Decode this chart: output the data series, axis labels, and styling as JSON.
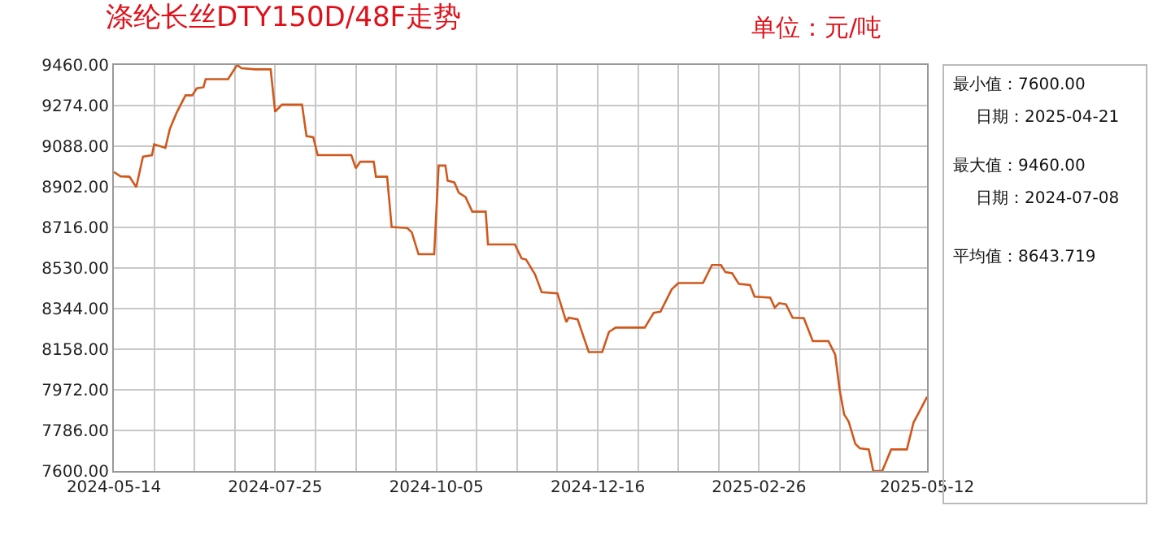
{
  "chart_data": {
    "type": "line",
    "title": "涤纶长丝DTY150D/48F走势",
    "subtitle": "单位：元/吨",
    "annotations": [
      "最小值：7600.00",
      "日期：2025-04-21",
      "最大值：9460.00",
      "日期：2024-07-08",
      "平均值：8643.719"
    ],
    "series": [
      {
        "color": "#d0581c",
        "x": [
          "2024-05-14",
          "2024-05-17",
          "2024-05-21",
          "2024-05-24",
          "2024-05-27",
          "2024-05-31",
          "2024-06-01",
          "2024-06-06",
          "2024-06-08",
          "2024-06-11",
          "2024-06-15",
          "2024-06-18",
          "2024-06-20",
          "2024-06-23",
          "2024-06-24",
          "2024-07-04",
          "2024-07-08",
          "2024-07-10",
          "2024-07-16",
          "2024-07-23",
          "2024-07-25",
          "2024-07-28",
          "2024-08-06",
          "2024-08-08",
          "2024-08-11",
          "2024-08-13",
          "2024-08-28",
          "2024-08-30",
          "2024-09-01",
          "2024-09-07",
          "2024-09-08",
          "2024-09-13",
          "2024-09-15",
          "2024-09-22",
          "2024-09-24",
          "2024-09-27",
          "2024-10-04",
          "2024-10-06",
          "2024-10-09",
          "2024-10-10",
          "2024-10-13",
          "2024-10-15",
          "2024-10-18",
          "2024-10-21",
          "2024-10-27",
          "2024-10-28",
          "2024-11-09",
          "2024-11-12",
          "2024-11-14",
          "2024-11-18",
          "2024-11-21",
          "2024-11-28",
          "2024-12-02",
          "2024-12-03",
          "2024-12-07",
          "2024-12-11",
          "2024-12-12",
          "2024-12-18",
          "2024-12-21",
          "2024-12-24",
          "2025-01-06",
          "2025-01-10",
          "2025-01-13",
          "2025-01-18",
          "2025-01-21",
          "2025-02-01",
          "2025-02-05",
          "2025-02-09",
          "2025-02-11",
          "2025-02-14",
          "2025-02-17",
          "2025-02-22",
          "2025-02-24",
          "2025-03-03",
          "2025-03-05",
          "2025-03-07",
          "2025-03-10",
          "2025-03-13",
          "2025-03-18",
          "2025-03-22",
          "2025-03-29",
          "2025-04-01",
          "2025-04-03",
          "2025-04-05",
          "2025-04-07",
          "2025-04-10",
          "2025-04-12",
          "2025-04-16",
          "2025-04-18",
          "2025-04-22",
          "2025-04-26",
          "2025-05-03",
          "2025-05-06",
          "2025-05-09",
          "2025-05-12"
        ],
        "values": [
          8970,
          8950,
          8948,
          8900,
          9040,
          9047,
          9097,
          9080,
          9167,
          9241,
          9321,
          9321,
          9353,
          9358,
          9395,
          9395,
          9460,
          9445,
          9440,
          9440,
          9246,
          9278,
          9278,
          9134,
          9129,
          9047,
          9047,
          8987,
          9017,
          9017,
          8948,
          8948,
          8718,
          8713,
          8693,
          8593,
          8593,
          8999,
          8999,
          8930,
          8922,
          8875,
          8855,
          8788,
          8788,
          8638,
          8638,
          8574,
          8569,
          8501,
          8419,
          8414,
          8282,
          8302,
          8295,
          8175,
          8145,
          8145,
          8237,
          8257,
          8257,
          8325,
          8330,
          8432,
          8461,
          8461,
          8544,
          8544,
          8511,
          8506,
          8457,
          8452,
          8399,
          8394,
          8349,
          8369,
          8364,
          8302,
          8300,
          8195,
          8195,
          8133,
          7971,
          7859,
          7827,
          7724,
          7704,
          7699,
          7600,
          7600,
          7699,
          7699,
          7823,
          7880,
          7940
        ]
      }
    ],
    "xlim": [
      "2024-05-14",
      "2025-05-12"
    ],
    "xticks": [
      "2024-05-14",
      {
        "value": "2024-06-01",
        "label": null
      },
      {
        "value": "2024-06-19",
        "label": null
      },
      {
        "value": "2024-07-07",
        "label": null
      },
      "2024-07-25",
      {
        "value": "2024-08-12",
        "label": null
      },
      {
        "value": "2024-08-30",
        "label": null
      },
      {
        "value": "2024-09-17",
        "label": null
      },
      "2024-10-05",
      {
        "value": "2024-10-23",
        "label": null
      },
      {
        "value": "2024-11-10",
        "label": null
      },
      {
        "value": "2024-11-28",
        "label": null
      },
      "2024-12-16",
      {
        "value": "2025-01-03",
        "label": null
      },
      {
        "value": "2025-01-21",
        "label": null
      },
      {
        "value": "2025-02-08",
        "label": null
      },
      "2025-02-26",
      {
        "value": "2025-03-16",
        "label": null
      },
      {
        "value": "2025-04-03",
        "label": null
      },
      {
        "value": "2025-04-21",
        "label": null
      },
      "2025-05-12"
    ],
    "ylim": [
      7600,
      9460
    ],
    "yticks": [
      {
        "value": 7600,
        "label": "7600.00"
      },
      {
        "value": 7786,
        "label": "7786.00"
      },
      {
        "value": 7972,
        "label": "7972.00"
      },
      {
        "value": 8158,
        "label": "8158.00"
      },
      {
        "value": 8344,
        "label": "8344.00"
      },
      {
        "value": 8530,
        "label": "8530.00"
      },
      {
        "value": 8716,
        "label": "8716.00"
      },
      {
        "value": 8902,
        "label": "8902.00"
      },
      {
        "value": 9088,
        "label": "9088.00"
      },
      {
        "value": 9274,
        "label": "9274.00"
      },
      {
        "value": 9460,
        "label": "9460.00"
      }
    ],
    "grid": true,
    "marker": "none",
    "line_style": "solid"
  }
}
